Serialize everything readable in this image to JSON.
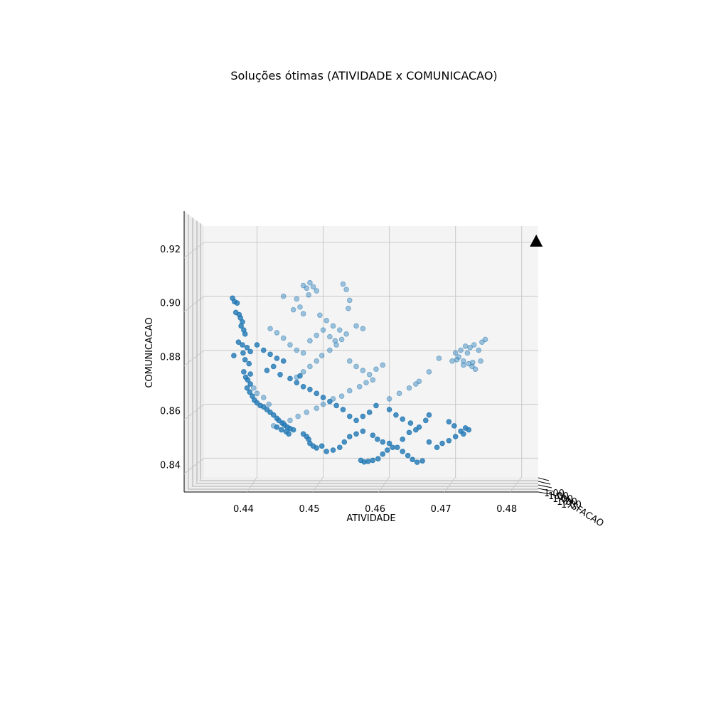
{
  "chart_data": {
    "type": "scatter",
    "title": "Soluções ótimas (ATIVIDADE x COMUNICACAO)",
    "xlabel": "ATIVIDADE",
    "ylabel": "COMUNICACAO",
    "zlabel": "SATISFACAO",
    "xlim": [
      0.432,
      0.4825
    ],
    "ylim": [
      0.833,
      0.926
    ],
    "x_ticks": [
      "0.44",
      "0.45",
      "0.46",
      "0.47",
      "0.48"
    ],
    "y_ticks": [
      "0.84",
      "0.86",
      "0.88",
      "0.90",
      "0.92"
    ],
    "z_ticks": [
      "1.00",
      "1.00",
      "1.00",
      "1.00",
      "1.00"
    ],
    "grid": true,
    "view": "3d-front",
    "colors": {
      "points": "#1f77b4",
      "marker": "#000000",
      "pane": "#f4f4f4",
      "grid": "#c8c8c8"
    },
    "series": [
      {
        "marker": "circle",
        "points": [
          [
            0.4363,
            0.8993
          ],
          [
            0.4366,
            0.898
          ],
          [
            0.437,
            0.8975
          ],
          [
            0.4368,
            0.894
          ],
          [
            0.4373,
            0.8932
          ],
          [
            0.4375,
            0.892
          ],
          [
            0.4378,
            0.8905
          ],
          [
            0.4376,
            0.889
          ],
          [
            0.438,
            0.8875
          ],
          [
            0.4382,
            0.886
          ],
          [
            0.4372,
            0.883
          ],
          [
            0.4378,
            0.882
          ],
          [
            0.4385,
            0.881
          ],
          [
            0.439,
            0.8795
          ],
          [
            0.4379,
            0.879
          ],
          [
            0.4365,
            0.878
          ],
          [
            0.4382,
            0.8765
          ],
          [
            0.4388,
            0.875
          ],
          [
            0.438,
            0.872
          ],
          [
            0.439,
            0.8712
          ],
          [
            0.4383,
            0.87
          ],
          [
            0.4386,
            0.869
          ],
          [
            0.439,
            0.8675
          ],
          [
            0.4385,
            0.866
          ],
          [
            0.4389,
            0.8645
          ],
          [
            0.4393,
            0.863
          ],
          [
            0.4396,
            0.8615
          ],
          [
            0.44,
            0.8605
          ],
          [
            0.4405,
            0.8595
          ],
          [
            0.441,
            0.859
          ],
          [
            0.4415,
            0.858
          ],
          [
            0.442,
            0.857
          ],
          [
            0.4425,
            0.856
          ],
          [
            0.443,
            0.8548
          ],
          [
            0.4433,
            0.854
          ],
          [
            0.4438,
            0.853
          ],
          [
            0.4442,
            0.8522
          ],
          [
            0.4446,
            0.8515
          ],
          [
            0.445,
            0.851
          ],
          [
            0.4455,
            0.8505
          ],
          [
            0.443,
            0.8515
          ],
          [
            0.4437,
            0.8505
          ],
          [
            0.4444,
            0.8498
          ],
          [
            0.4448,
            0.849
          ],
          [
            0.447,
            0.849
          ],
          [
            0.4475,
            0.848
          ],
          [
            0.4478,
            0.847
          ],
          [
            0.448,
            0.8455
          ],
          [
            0.4485,
            0.8445
          ],
          [
            0.449,
            0.8438
          ],
          [
            0.4498,
            0.8445
          ],
          [
            0.4505,
            0.8425
          ],
          [
            0.4515,
            0.843
          ],
          [
            0.4525,
            0.844
          ],
          [
            0.4532,
            0.846
          ],
          [
            0.454,
            0.848
          ],
          [
            0.455,
            0.849
          ],
          [
            0.456,
            0.85
          ],
          [
            0.4575,
            0.8485
          ],
          [
            0.4582,
            0.847
          ],
          [
            0.459,
            0.846
          ],
          [
            0.46,
            0.8455
          ],
          [
            0.4612,
            0.844
          ],
          [
            0.462,
            0.8425
          ],
          [
            0.4628,
            0.841
          ],
          [
            0.4635,
            0.8395
          ],
          [
            0.4642,
            0.8385
          ],
          [
            0.465,
            0.839
          ],
          [
            0.4557,
            0.8392
          ],
          [
            0.4562,
            0.8386
          ],
          [
            0.4568,
            0.8388
          ],
          [
            0.4575,
            0.8392
          ],
          [
            0.4583,
            0.8398
          ],
          [
            0.459,
            0.8415
          ],
          [
            0.4597,
            0.843
          ],
          [
            0.4605,
            0.844
          ],
          [
            0.462,
            0.847
          ],
          [
            0.463,
            0.8495
          ],
          [
            0.464,
            0.8505
          ],
          [
            0.466,
            0.846
          ],
          [
            0.4672,
            0.844
          ],
          [
            0.468,
            0.8455
          ],
          [
            0.469,
            0.8465
          ],
          [
            0.47,
            0.848
          ],
          [
            0.4708,
            0.85
          ],
          [
            0.4715,
            0.8512
          ],
          [
            0.472,
            0.8505
          ],
          [
            0.4712,
            0.849
          ],
          [
            0.4698,
            0.852
          ],
          [
            0.469,
            0.8535
          ],
          [
            0.46,
            0.858
          ],
          [
            0.461,
            0.856
          ],
          [
            0.462,
            0.8545
          ],
          [
            0.4632,
            0.853
          ],
          [
            0.4645,
            0.8515
          ],
          [
            0.4655,
            0.854
          ],
          [
            0.466,
            0.856
          ],
          [
            0.458,
            0.8595
          ],
          [
            0.457,
            0.857
          ],
          [
            0.456,
            0.8555
          ],
          [
            0.455,
            0.854
          ],
          [
            0.454,
            0.8555
          ],
          [
            0.453,
            0.858
          ],
          [
            0.452,
            0.8595
          ],
          [
            0.451,
            0.861
          ],
          [
            0.45,
            0.8625
          ],
          [
            0.449,
            0.864
          ],
          [
            0.448,
            0.8655
          ],
          [
            0.447,
            0.8665
          ],
          [
            0.446,
            0.868
          ],
          [
            0.44,
            0.882
          ],
          [
            0.441,
            0.88
          ],
          [
            0.442,
            0.8785
          ],
          [
            0.443,
            0.877
          ],
          [
            0.444,
            0.876
          ],
          [
            0.4425,
            0.874
          ],
          [
            0.4415,
            0.8725
          ],
          [
            0.4435,
            0.871
          ],
          [
            0.445,
            0.8695
          ],
          [
            0.4465,
            0.8705
          ]
        ]
      },
      {
        "marker": "circle",
        "light": true,
        "points": [
          [
            0.444,
            0.9
          ],
          [
            0.446,
            0.899
          ],
          [
            0.447,
            0.904
          ],
          [
            0.4475,
            0.903
          ],
          [
            0.448,
            0.905
          ],
          [
            0.4485,
            0.9035
          ],
          [
            0.449,
            0.902
          ],
          [
            0.4478,
            0.9005
          ],
          [
            0.4465,
            0.896
          ],
          [
            0.4455,
            0.895
          ],
          [
            0.447,
            0.8935
          ],
          [
            0.4495,
            0.893
          ],
          [
            0.4505,
            0.891
          ],
          [
            0.4515,
            0.889
          ],
          [
            0.4525,
            0.8875
          ],
          [
            0.453,
            0.9045
          ],
          [
            0.4535,
            0.9025
          ],
          [
            0.454,
            0.8985
          ],
          [
            0.4538,
            0.8955
          ],
          [
            0.455,
            0.889
          ],
          [
            0.456,
            0.888
          ],
          [
            0.4535,
            0.886
          ],
          [
            0.4528,
            0.884
          ],
          [
            0.452,
            0.882
          ],
          [
            0.451,
            0.88
          ],
          [
            0.4498,
            0.878
          ],
          [
            0.449,
            0.876
          ],
          [
            0.448,
            0.874
          ],
          [
            0.447,
            0.872
          ],
          [
            0.446,
            0.87
          ],
          [
            0.454,
            0.876
          ],
          [
            0.455,
            0.874
          ],
          [
            0.456,
            0.8725
          ],
          [
            0.457,
            0.871
          ],
          [
            0.458,
            0.873
          ],
          [
            0.459,
            0.8745
          ],
          [
            0.4575,
            0.869
          ],
          [
            0.4565,
            0.868
          ],
          [
            0.4555,
            0.8665
          ],
          [
            0.454,
            0.865
          ],
          [
            0.4528,
            0.863
          ],
          [
            0.4515,
            0.862
          ],
          [
            0.45,
            0.86
          ],
          [
            0.449,
            0.8585
          ],
          [
            0.4475,
            0.857
          ],
          [
            0.4462,
            0.8555
          ],
          [
            0.445,
            0.854
          ],
          [
            0.444,
            0.853
          ],
          [
            0.4425,
            0.852
          ],
          [
            0.4418,
            0.86
          ],
          [
            0.441,
            0.8625
          ],
          [
            0.44,
            0.864
          ],
          [
            0.4395,
            0.866
          ],
          [
            0.442,
            0.888
          ],
          [
            0.443,
            0.8865
          ],
          [
            0.444,
            0.8845
          ],
          [
            0.445,
            0.882
          ],
          [
            0.446,
            0.88
          ],
          [
            0.447,
            0.879
          ],
          [
            0.448,
            0.8835
          ],
          [
            0.449,
            0.8855
          ],
          [
            0.45,
            0.8875
          ],
          [
            0.451,
            0.885
          ],
          [
            0.4518,
            0.8835
          ],
          [
            0.46,
            0.862
          ],
          [
            0.4615,
            0.864
          ],
          [
            0.463,
            0.866
          ],
          [
            0.464,
            0.8675
          ],
          [
            0.4645,
            0.8685
          ],
          [
            0.466,
            0.872
          ],
          [
            0.4675,
            0.877
          ],
          [
            0.47,
            0.879
          ],
          [
            0.4705,
            0.8775
          ],
          [
            0.4712,
            0.876
          ],
          [
            0.472,
            0.875
          ],
          [
            0.4725,
            0.874
          ],
          [
            0.473,
            0.873
          ],
          [
            0.4718,
            0.879
          ],
          [
            0.4722,
            0.881
          ],
          [
            0.4728,
            0.882
          ],
          [
            0.4735,
            0.88
          ],
          [
            0.474,
            0.883
          ],
          [
            0.4745,
            0.884
          ],
          [
            0.4708,
            0.88
          ],
          [
            0.4702,
            0.8765
          ],
          [
            0.4695,
            0.876
          ],
          [
            0.4712,
            0.8745
          ],
          [
            0.4726,
            0.8755
          ],
          [
            0.4738,
            0.876
          ],
          [
            0.4715,
            0.8815
          ]
        ]
      }
    ],
    "extra_marker": {
      "marker": "triangle",
      "x": 0.4822,
      "y": 0.9205
    }
  }
}
